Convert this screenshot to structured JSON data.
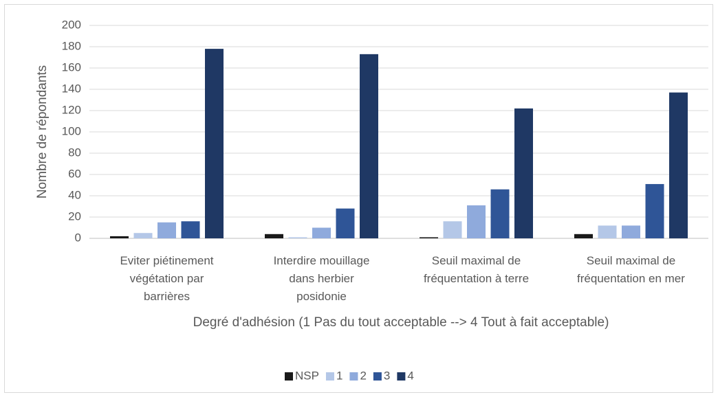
{
  "chart_data": {
    "type": "bar",
    "x_label": "Degré d'adhésion (1 Pas du tout acceptable --> 4 Tout à fait acceptable)",
    "y_label": "Nombre de répondants",
    "categories": [
      "Eviter piétinement\nvégétation par\nbarrières",
      "Interdire mouillage\ndans herbier\nposidonie",
      "Seuil maximal de\nfréquentation à terre",
      "Seuil maximal de\nfréquentation en mer"
    ],
    "series": [
      {
        "name": "NSP",
        "color": "#1a1a1a",
        "values": [
          2,
          4,
          1,
          4
        ]
      },
      {
        "name": "1",
        "color": "#b4c7e7",
        "values": [
          5,
          1,
          16,
          12
        ]
      },
      {
        "name": "2",
        "color": "#8faadc",
        "values": [
          15,
          10,
          31,
          12
        ]
      },
      {
        "name": "3",
        "color": "#2f5597",
        "values": [
          16,
          28,
          46,
          51
        ]
      },
      {
        "name": "4",
        "color": "#1f3864",
        "values": [
          178,
          173,
          122,
          137
        ]
      }
    ],
    "ylim": [
      0,
      200
    ],
    "yticks": [
      0,
      20,
      40,
      60,
      80,
      100,
      120,
      140,
      160,
      180,
      200
    ],
    "grid": true,
    "legend": "bottom"
  }
}
